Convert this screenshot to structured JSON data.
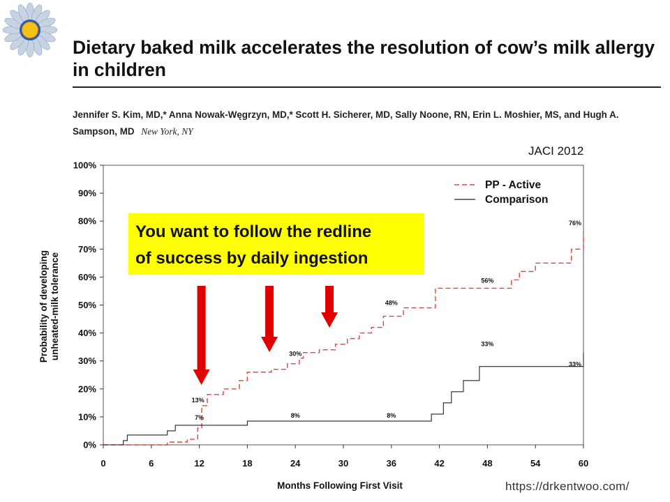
{
  "slide": {
    "title": "Dietary baked milk accelerates the resolution of cow’s milk allergy in children",
    "authors": "Jennifer S. Kim, MD,* Anna Nowak-Węgrzyn, MD,* Scott H. Sicherer, MD, Sally Noone, RN, Erin L. Moshier, MS, and Hugh A. Sampson, MD",
    "location": "New York, NY",
    "citation": "JACI 2012",
    "callout": {
      "line1": "You want to follow the redline",
      "line2": "of success by daily ingestion"
    },
    "source_url": "https://drkentwoo.com/",
    "colors": {
      "pp_active": "#e8413a",
      "comparison": "#222222",
      "callout_bg": "#ffff00",
      "arrow": "#e00000",
      "logo_petals": "#c7d3e3",
      "logo_center": "#f2c21b"
    },
    "icons": [
      "sunflower-logo-icon",
      "down-arrow-icon"
    ]
  },
  "chart_data": {
    "type": "line",
    "step": true,
    "xlabel": "Months Following First Visit",
    "ylabel_line1": "Probability of developing",
    "ylabel_line2": "unheated-milk tolerance",
    "xlim": [
      0,
      60
    ],
    "ylim": [
      0,
      100
    ],
    "x_ticks": [
      0,
      6,
      12,
      18,
      24,
      30,
      36,
      42,
      48,
      54,
      60
    ],
    "y_ticks": [
      0,
      10,
      20,
      30,
      40,
      50,
      60,
      70,
      80,
      90,
      100
    ],
    "y_tick_labels": [
      "0%",
      "10%",
      "20%",
      "30%",
      "40%",
      "50%",
      "60%",
      "70%",
      "80%",
      "90%",
      "100%"
    ],
    "legend_position": "top-right",
    "grid": false,
    "series": [
      {
        "name": "PP - Active",
        "style": "dashed",
        "x": [
          0,
          8,
          10.5,
          11.8,
          12.3,
          13,
          15,
          17,
          18,
          21,
          23,
          24.5,
          25,
          27,
          29,
          30.5,
          32,
          33.5,
          35,
          37.5,
          41.5,
          51,
          52,
          54,
          58.5,
          60
        ],
        "y": [
          0,
          1,
          2,
          6,
          14,
          18,
          20,
          23,
          26,
          27,
          29,
          31,
          33,
          34,
          36,
          38,
          40,
          42,
          46,
          49,
          56,
          59,
          62,
          65,
          70,
          76
        ]
      },
      {
        "name": "Comparison",
        "style": "solid",
        "x": [
          0,
          2.5,
          3,
          8,
          9,
          18,
          38,
          41,
          42.5,
          43.5,
          45,
          47,
          60
        ],
        "y": [
          0,
          1.5,
          3.5,
          5,
          7,
          8.5,
          8.5,
          11,
          15,
          19,
          23,
          28,
          33
        ]
      }
    ],
    "annotations": [
      {
        "text": "7%",
        "x": 12,
        "y": 7
      },
      {
        "text": "13%",
        "x": 12,
        "y": 13
      },
      {
        "text": "30%",
        "x": 24,
        "y": 30
      },
      {
        "text": "48%",
        "x": 36,
        "y": 48
      },
      {
        "text": "56%",
        "x": 48,
        "y": 56
      },
      {
        "text": "76%",
        "x": 60,
        "y": 76
      },
      {
        "text": "8%",
        "x": 24,
        "y": 8
      },
      {
        "text": "8%",
        "x": 36,
        "y": 8
      },
      {
        "text": "33%",
        "x": 48,
        "y": 33
      },
      {
        "text": "33%",
        "x": 60,
        "y": 33
      }
    ],
    "arrows_at_months": [
      12,
      20.5,
      28
    ]
  }
}
